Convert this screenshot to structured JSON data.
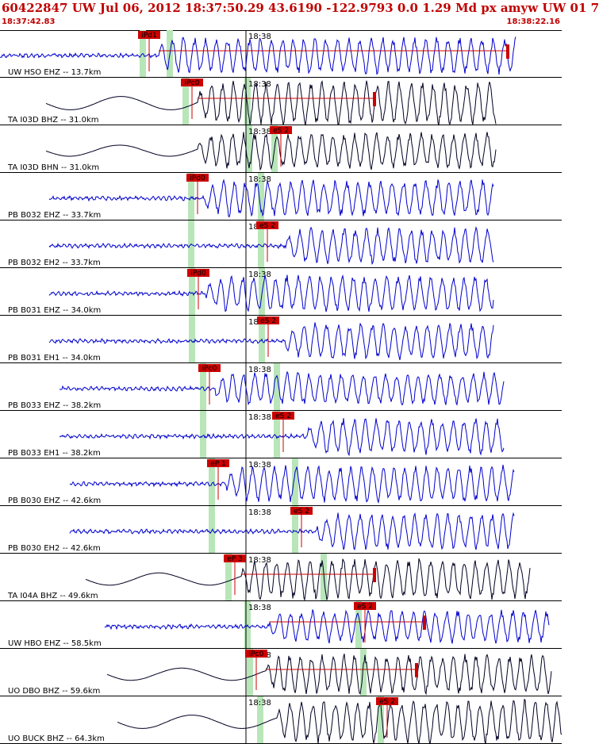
{
  "header": {
    "title": "60422847 UW Jul 06, 2012 18:37:50.29   43.6190 -122.9793  0.0 1.29 Md px amyw UW 01   7",
    "start_time": "18:37:42.83",
    "end_time": "18:38:22.16"
  },
  "minute_label": "18:38",
  "colors": {
    "header_text": "#c00000",
    "pick": "#cc0000",
    "trace_blue": "#0000cc",
    "trace_black": "#000022",
    "window": "#b8e6b8"
  },
  "traces": [
    {
      "station": "UW HSO EHZ -- 13.7km",
      "color": "blue",
      "picks": [
        {
          "label": "iPd1"
        }
      ]
    },
    {
      "station": "TA I03D BHZ -- 31.0km",
      "color": "black",
      "picks": [
        {
          "label": "iPc0"
        }
      ]
    },
    {
      "station": "TA I03D BHN -- 31.0km",
      "color": "black",
      "picks": [
        {
          "label": "eS 2"
        }
      ]
    },
    {
      "station": "PB B032 EHZ -- 33.7km",
      "color": "blue",
      "picks": [
        {
          "label": "iPd0"
        }
      ]
    },
    {
      "station": "PB B032 EH2 -- 33.7km",
      "color": "blue",
      "picks": [
        {
          "label": "eS 2"
        }
      ]
    },
    {
      "station": "PB B031 EHZ -- 34.0km",
      "color": "blue",
      "picks": [
        {
          "label": "iPd0"
        }
      ]
    },
    {
      "station": "PB B031 EH1 -- 34.0km",
      "color": "blue",
      "picks": [
        {
          "label": "eS 2"
        }
      ]
    },
    {
      "station": "PB B033 EHZ -- 38.2km",
      "color": "blue",
      "picks": [
        {
          "label": "iPc0"
        }
      ]
    },
    {
      "station": "PB B033 EH1 -- 38.2km",
      "color": "blue",
      "picks": [
        {
          "label": "eS 2"
        }
      ]
    },
    {
      "station": "PB B030 EHZ -- 42.6km",
      "color": "blue",
      "picks": [
        {
          "label": "eP 1"
        }
      ]
    },
    {
      "station": "PB B030 EH2 -- 42.6km",
      "color": "blue",
      "picks": [
        {
          "label": "eS 2"
        }
      ]
    },
    {
      "station": "TA I04A BHZ -- 49.6km",
      "color": "black",
      "picks": [
        {
          "label": "eP 3"
        }
      ]
    },
    {
      "station": "UW HBO EHZ -- 58.5km",
      "color": "blue",
      "picks": [
        {
          "label": "eS 2"
        }
      ]
    },
    {
      "station": "UO DBO BHZ -- 59.6km",
      "color": "black",
      "picks": [
        {
          "label": "iPc0"
        }
      ]
    },
    {
      "station": "UO BUCK BHZ -- 64.3km",
      "color": "black",
      "picks": [
        {
          "label": "eS 2"
        }
      ]
    }
  ]
}
